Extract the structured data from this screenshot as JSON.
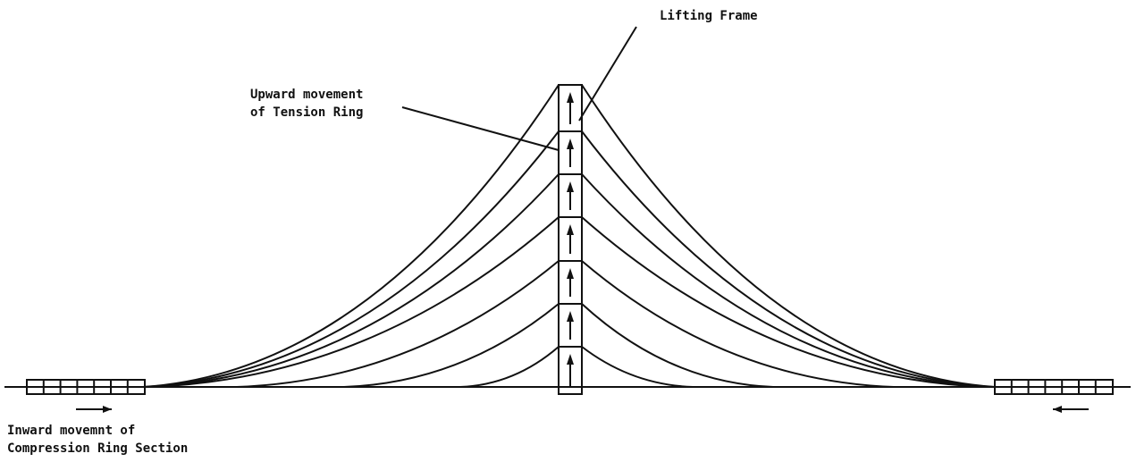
{
  "labels": {
    "lifting_frame": "Lifting Frame",
    "tension_ring": [
      "Upward movement",
      "of Tension Ring"
    ],
    "compression_ring": [
      "Inward movemnt of",
      "Compression Ring Section"
    ]
  }
}
